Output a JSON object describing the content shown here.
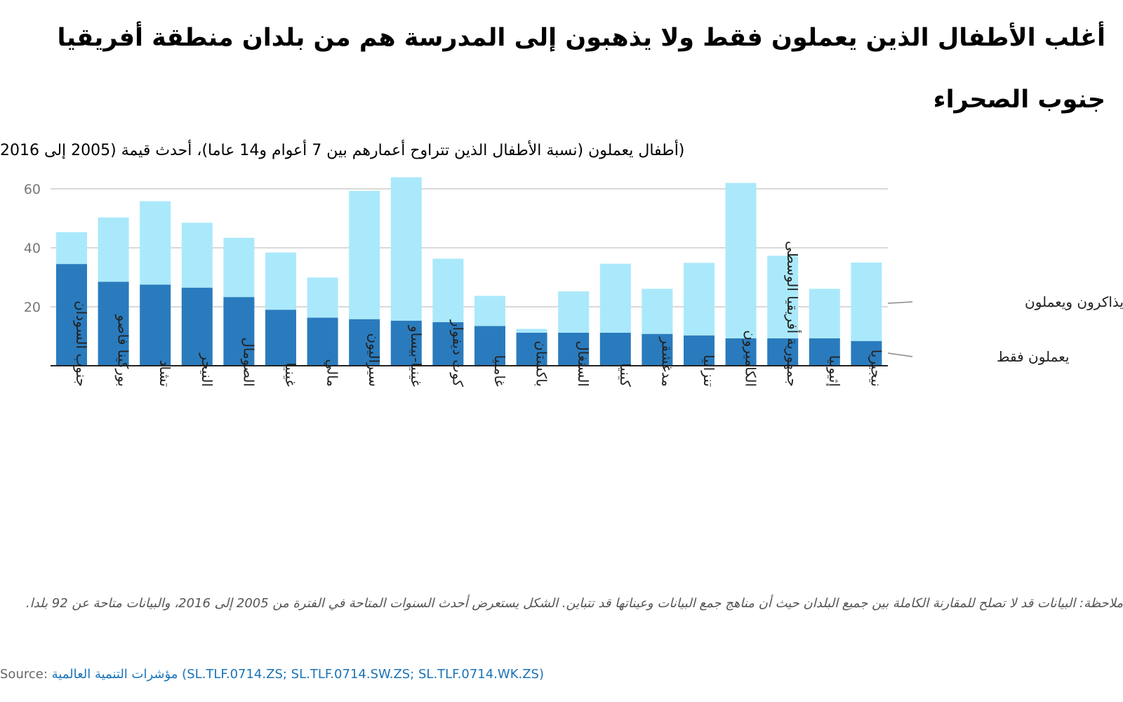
{
  "title": "أغلب الأطفال الذين يعملون فقط ولا يذهبون إلى المدرسة هم من بلدان منطقة أفريقيا جنوب الصحراء",
  "subtitle": "(أطفال يعملون (نسبة الأطفال الذين تتراوح أعمارهم بين 7 أعوام و14 عاما)، أحدث قيمة (2005 إلى 2016",
  "note": "ملاحظة: البيانات قد لا تصلح للمقارنة الكاملة بين جميع البلدان حيث أن مناهج جمع البيانات وعيناتها قد تتباين. الشكل يستعرض أحدث السنوات المتاحة في الفترة من 2005 إلى 2016، والبيانات متاحة عن 92 بلدا.",
  "source": {
    "label": "Source:",
    "name": "مؤشرات التنمية العالمية",
    "codes": "(SL.TLF.0714.ZS; SL.TLF.0714.SW.ZS; SL.TLF.0714.WK.ZS)"
  },
  "colors": {
    "work_only": "#2a7bbd",
    "study_and_work": "#aae9fb",
    "axis": "#222222",
    "grid": "#d9d9d9",
    "tick_text": "#777777"
  },
  "chart_data": {
    "type": "bar",
    "stacked": true,
    "categories": [
      "جنوب السودان",
      "بوركينا فاصو",
      "تشاد",
      "النيجر",
      "الصومال",
      "غينيا",
      "مالي",
      "سيراليون",
      "غينيا-بيساو",
      "كوت ديفوار",
      "غامبيا",
      "باكستان",
      "السنغال",
      "كينيا",
      "مدغشقر",
      "تنزانيا",
      "الكاميرون",
      "جمهورية أفريقيا الوسطى",
      "إثيوبيا",
      "نيجيريا"
    ],
    "series": [
      {
        "name": "يعملون فقط",
        "values": [
          34.5,
          28.5,
          27.5,
          26.5,
          23.3,
          19.0,
          16.3,
          15.8,
          15.3,
          14.8,
          13.5,
          11.2,
          11.2,
          11.2,
          10.8,
          10.3,
          9.3,
          9.3,
          9.3,
          8.4
        ]
      },
      {
        "name": "يذاكرون ويعملون",
        "values": [
          10.8,
          21.8,
          28.3,
          22.0,
          20.1,
          19.4,
          13.6,
          43.5,
          48.6,
          21.5,
          10.2,
          1.3,
          14.0,
          23.4,
          15.3,
          24.6,
          52.7,
          28.0,
          16.8,
          26.6
        ]
      }
    ],
    "ylim": [
      0,
      63.5
    ],
    "yticks": [
      20,
      40,
      60
    ],
    "grid": true,
    "legend": "right, labels at series ends"
  }
}
